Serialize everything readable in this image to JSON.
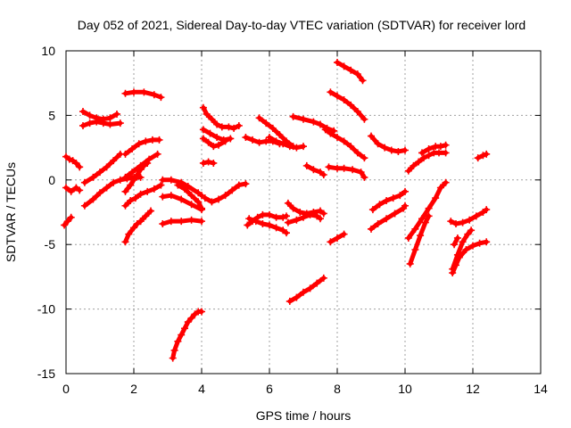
{
  "chart_data": {
    "type": "scatter",
    "title": "Day 052 of 2021, Sidereal Day-to-day VTEC variation (SDTVAR) for receiver lord",
    "xlabel": "GPS time / hours",
    "ylabel": "SDTVAR / TECUs",
    "xlim": [
      0,
      14
    ],
    "ylim": [
      -15,
      10
    ],
    "xticks": [
      0,
      2,
      4,
      6,
      8,
      10,
      12,
      14
    ],
    "yticks": [
      -15,
      -10,
      -5,
      0,
      5,
      10
    ],
    "grid": true,
    "marker": "plus",
    "color": "#ff0000",
    "series": [
      {
        "x": [
          0.0,
          0.1,
          0.2,
          0.3,
          0.4
        ],
        "y": [
          1.8,
          1.6,
          1.5,
          1.3,
          1.0
        ]
      },
      {
        "x": [
          0.0,
          0.15,
          0.3,
          0.4
        ],
        "y": [
          -0.6,
          -0.9,
          -0.6,
          -0.8
        ]
      },
      {
        "x": [
          -0.05,
          0.05,
          0.15
        ],
        "y": [
          -3.5,
          -3.2,
          -2.9
        ]
      },
      {
        "x": [
          0.5,
          0.7,
          0.9,
          1.1,
          1.3,
          1.5
        ],
        "y": [
          5.3,
          5.0,
          4.8,
          4.7,
          4.8,
          5.1
        ]
      },
      {
        "x": [
          0.5,
          0.7,
          0.9,
          1.1,
          1.3,
          1.6
        ],
        "y": [
          4.2,
          4.4,
          4.5,
          4.4,
          4.3,
          4.4
        ]
      },
      {
        "x": [
          0.55,
          0.8,
          1.0,
          1.2,
          1.4,
          1.6
        ],
        "y": [
          -0.2,
          0.2,
          0.6,
          1.0,
          1.5,
          2.0
        ]
      },
      {
        "x": [
          0.55,
          0.8,
          1.0,
          1.2,
          1.4,
          1.6,
          1.8,
          2.0,
          2.2
        ],
        "y": [
          -2.0,
          -1.5,
          -1.0,
          -0.6,
          -0.2,
          0.0,
          0.1,
          0.2,
          0.2
        ]
      },
      {
        "x": [
          1.75,
          1.85,
          2.0,
          2.1,
          2.2
        ],
        "y": [
          -4.8,
          -4.2,
          -3.7,
          -3.4,
          -3.2
        ]
      },
      {
        "x": [
          2.2,
          2.35,
          2.5
        ],
        "y": [
          -3.2,
          -2.8,
          -2.4
        ]
      },
      {
        "x": [
          1.75,
          1.9,
          2.05,
          2.2,
          2.4,
          2.6,
          2.8
        ],
        "y": [
          -2.0,
          -1.6,
          -1.4,
          -1.1,
          -0.9,
          -0.7,
          -0.4
        ]
      },
      {
        "x": [
          1.75,
          1.9,
          2.0,
          2.1,
          2.2,
          2.3,
          2.4
        ],
        "y": [
          -0.9,
          -0.4,
          0.0,
          0.4,
          0.8,
          1.1,
          1.3
        ]
      },
      {
        "x": [
          1.75,
          1.95,
          2.2,
          2.45,
          2.7
        ],
        "y": [
          0.2,
          0.6,
          1.1,
          1.6,
          2.0
        ]
      },
      {
        "x": [
          1.75,
          1.95,
          2.15,
          2.35,
          2.55,
          2.75
        ],
        "y": [
          2.0,
          2.4,
          2.8,
          3.0,
          3.1,
          3.1
        ]
      },
      {
        "x": [
          1.75,
          2.0,
          2.3,
          2.6,
          2.8
        ],
        "y": [
          6.7,
          6.8,
          6.8,
          6.6,
          6.4
        ]
      },
      {
        "x": [
          2.85,
          3.1,
          3.4,
          3.6,
          3.9,
          4.0
        ],
        "y": [
          0.0,
          0.0,
          -0.2,
          -0.5,
          -1.0,
          -1.2
        ]
      },
      {
        "x": [
          2.85,
          3.1,
          3.4,
          3.7,
          4.0
        ],
        "y": [
          -1.3,
          -1.2,
          -1.5,
          -1.9,
          -2.3
        ]
      },
      {
        "x": [
          2.85,
          3.1,
          3.4,
          3.7,
          4.0
        ],
        "y": [
          -3.4,
          -3.2,
          -3.2,
          -3.1,
          -3.2
        ]
      },
      {
        "x": [
          3.15,
          3.2,
          3.3,
          3.4,
          3.5,
          3.6,
          3.7,
          3.8,
          3.9,
          4.0
        ],
        "y": [
          -13.8,
          -13.2,
          -12.5,
          -12.0,
          -11.5,
          -11.0,
          -10.7,
          -10.4,
          -10.2,
          -10.2
        ]
      },
      {
        "x": [
          3.3,
          3.5,
          3.7,
          3.9,
          4.0
        ],
        "y": [
          -0.4,
          -0.7,
          -1.2,
          -1.7,
          -2.2
        ]
      },
      {
        "x": [
          4.05,
          4.15,
          4.3,
          4.45,
          4.6,
          4.8,
          4.95,
          5.1
        ],
        "y": [
          5.6,
          5.1,
          4.7,
          4.3,
          4.1,
          4.1,
          4.0,
          4.2
        ]
      },
      {
        "x": [
          4.05,
          4.25,
          4.45,
          4.65,
          4.85
        ],
        "y": [
          3.9,
          3.6,
          3.3,
          3.1,
          3.2
        ]
      },
      {
        "x": [
          4.05,
          4.2,
          4.35,
          4.5,
          4.7
        ],
        "y": [
          3.2,
          2.9,
          2.6,
          2.7,
          3.0
        ]
      },
      {
        "x": [
          4.05,
          4.2,
          4.35
        ],
        "y": [
          1.3,
          1.4,
          1.3
        ]
      },
      {
        "x": [
          4.1,
          4.3,
          4.5,
          4.7,
          4.9,
          5.1,
          5.3
        ],
        "y": [
          -1.4,
          -1.7,
          -1.5,
          -1.2,
          -0.8,
          -0.4,
          -0.3
        ]
      },
      {
        "x": [
          5.3,
          5.5,
          5.7,
          5.9,
          6.1,
          6.3
        ],
        "y": [
          3.3,
          3.1,
          2.9,
          3.0,
          3.0,
          2.8
        ]
      },
      {
        "x": [
          5.35,
          5.5,
          5.65,
          5.8,
          6.0,
          6.2,
          6.4,
          6.5
        ],
        "y": [
          -3.5,
          -3.2,
          -2.9,
          -2.7,
          -2.7,
          -2.9,
          -2.9,
          -2.8
        ]
      },
      {
        "x": [
          5.4,
          5.6,
          5.8,
          6.0,
          6.2,
          6.4,
          6.5
        ],
        "y": [
          -3.0,
          -3.2,
          -3.4,
          -3.5,
          -3.7,
          -3.9,
          -4.1
        ]
      },
      {
        "x": [
          5.7,
          5.9,
          6.1,
          6.3,
          6.5,
          6.7
        ],
        "y": [
          4.8,
          4.4,
          4.0,
          3.5,
          3.0,
          2.6
        ]
      },
      {
        "x": [
          6.0,
          6.2,
          6.4,
          6.6,
          6.8,
          7.0
        ],
        "y": [
          3.3,
          3.0,
          2.8,
          2.6,
          2.5,
          2.6
        ]
      },
      {
        "x": [
          6.55,
          6.7,
          6.9,
          7.1,
          7.3,
          7.5,
          7.6
        ],
        "y": [
          -1.8,
          -2.2,
          -2.5,
          -2.6,
          -2.5,
          -2.4,
          -2.6
        ]
      },
      {
        "x": [
          6.55,
          6.8,
          7.0,
          7.2,
          7.4,
          7.5
        ],
        "y": [
          -3.3,
          -3.1,
          -2.9,
          -2.7,
          -2.8,
          -3.0
        ]
      },
      {
        "x": [
          6.6,
          6.8,
          7.0,
          7.2,
          7.4,
          7.6
        ],
        "y": [
          -9.4,
          -9.1,
          -8.7,
          -8.4,
          -8.0,
          -7.6
        ]
      },
      {
        "x": [
          6.7,
          7.0,
          7.3,
          7.5,
          7.7,
          7.9
        ],
        "y": [
          4.9,
          4.7,
          4.5,
          4.3,
          4.0,
          3.8
        ]
      },
      {
        "x": [
          7.1,
          7.3,
          7.5,
          7.6
        ],
        "y": [
          1.1,
          0.8,
          0.6,
          0.4
        ]
      },
      {
        "x": [
          7.65,
          7.8,
          8.0,
          8.2,
          8.4,
          8.6,
          8.8
        ],
        "y": [
          3.9,
          3.6,
          3.3,
          3.0,
          2.6,
          2.1,
          1.7
        ]
      },
      {
        "x": [
          7.8,
          8.0,
          8.2,
          8.4,
          8.6,
          8.8
        ],
        "y": [
          6.8,
          6.5,
          6.2,
          5.8,
          5.3,
          4.7
        ]
      },
      {
        "x": [
          8.0,
          8.2,
          8.4,
          8.6,
          8.75
        ],
        "y": [
          9.1,
          8.8,
          8.5,
          8.2,
          7.7
        ]
      },
      {
        "x": [
          7.75,
          8.0,
          8.2,
          8.45,
          8.7,
          8.8
        ],
        "y": [
          1.0,
          0.9,
          0.9,
          0.8,
          0.6,
          0.2
        ]
      },
      {
        "x": [
          7.8,
          8.0,
          8.2
        ],
        "y": [
          -4.8,
          -4.5,
          -4.2
        ]
      },
      {
        "x": [
          9.0,
          9.2,
          9.4,
          9.6,
          9.8,
          10.0
        ],
        "y": [
          3.4,
          2.8,
          2.5,
          2.3,
          2.2,
          2.3
        ]
      },
      {
        "x": [
          9.05,
          9.25,
          9.45,
          9.65,
          9.85,
          10.0
        ],
        "y": [
          -2.3,
          -1.9,
          -1.6,
          -1.4,
          -1.2,
          -0.9
        ]
      },
      {
        "x": [
          9.0,
          9.2,
          9.45,
          9.7,
          9.95,
          10.0
        ],
        "y": [
          -3.8,
          -3.4,
          -3.0,
          -2.6,
          -2.2,
          -2.0
        ]
      },
      {
        "x": [
          10.1,
          10.25,
          10.4,
          10.55,
          10.7,
          10.85,
          11.0,
          11.2
        ],
        "y": [
          0.7,
          1.1,
          1.4,
          1.7,
          1.9,
          2.1,
          2.1,
          2.1
        ]
      },
      {
        "x": [
          10.5,
          10.7,
          10.9,
          11.05,
          11.2
        ],
        "y": [
          2.1,
          2.4,
          2.6,
          2.6,
          2.7
        ]
      },
      {
        "x": [
          10.1,
          10.3,
          10.5,
          10.7,
          10.9,
          11.05,
          11.2
        ],
        "y": [
          -4.5,
          -3.8,
          -3.0,
          -2.2,
          -1.4,
          -0.6,
          -0.2
        ]
      },
      {
        "x": [
          10.15,
          10.3,
          10.45,
          10.6,
          10.7
        ],
        "y": [
          -6.5,
          -5.4,
          -4.3,
          -3.3,
          -2.8
        ]
      },
      {
        "x": [
          11.35,
          11.5,
          11.7,
          11.9,
          12.1,
          12.3,
          12.4
        ],
        "y": [
          -3.2,
          -3.4,
          -3.3,
          -3.1,
          -2.8,
          -2.5,
          -2.3
        ]
      },
      {
        "x": [
          11.4,
          11.5,
          11.6,
          11.8,
          12.0,
          12.2,
          12.4
        ],
        "y": [
          -7.2,
          -6.6,
          -6.0,
          -5.4,
          -5.1,
          -4.9,
          -4.8
        ]
      },
      {
        "x": [
          11.4,
          11.55,
          11.7,
          11.85,
          11.95
        ],
        "y": [
          -6.9,
          -5.8,
          -4.8,
          -4.2,
          -3.9
        ]
      },
      {
        "x": [
          11.45,
          11.55
        ],
        "y": [
          -5.0,
          -4.5
        ]
      },
      {
        "x": [
          12.15,
          12.3,
          12.4
        ],
        "y": [
          1.7,
          1.9,
          2.0
        ]
      }
    ]
  }
}
